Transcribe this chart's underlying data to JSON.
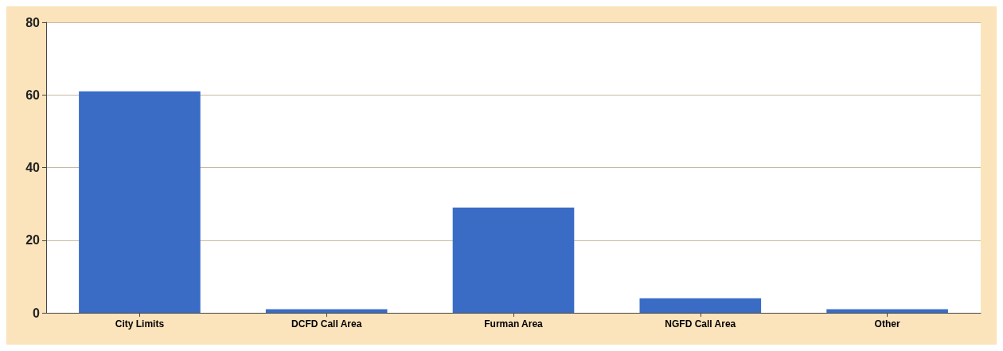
{
  "chart_data": {
    "type": "bar",
    "categories": [
      "City Limits",
      "DCFD Call Area",
      "Furman Area",
      "NGFD Call Area",
      "Other"
    ],
    "values": [
      61,
      1,
      29,
      4,
      1
    ],
    "color": "#3a6cc6",
    "ylim": [
      0,
      80
    ],
    "yticks": [
      0,
      20,
      40,
      60,
      80
    ],
    "grid": "y"
  }
}
